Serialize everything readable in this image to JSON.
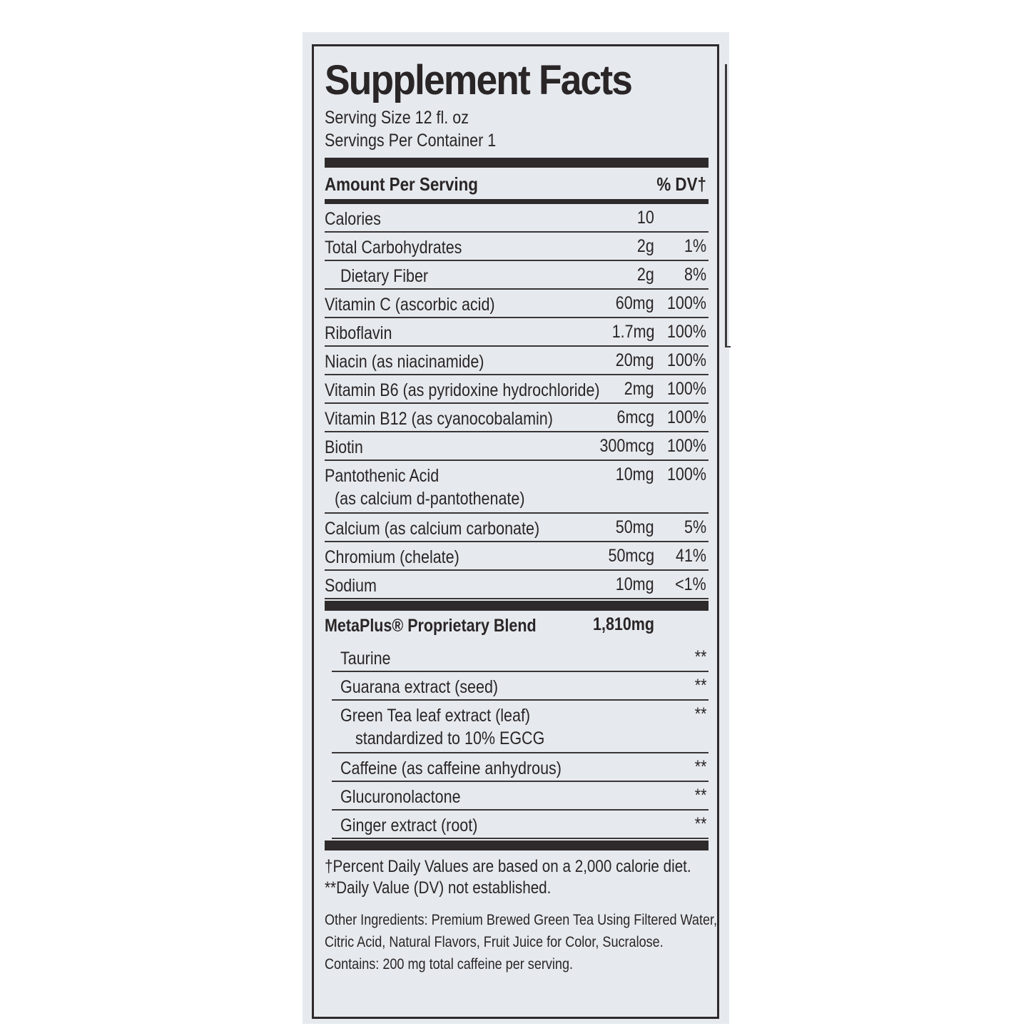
{
  "title": "Supplement Facts",
  "serving_size": "Serving Size 12 fl. oz",
  "servings_per_container": "Servings Per Container 1",
  "header": {
    "amount": "Amount Per Serving",
    "dv": "% DV†"
  },
  "nutrients": [
    {
      "name": "Calories",
      "amount": "10",
      "dv": ""
    },
    {
      "name": "Total Carbohydrates",
      "amount": "2g",
      "dv": "1%"
    },
    {
      "name": "Dietary Fiber",
      "amount": "2g",
      "dv": "8%"
    },
    {
      "name": "Vitamin C (ascorbic acid)",
      "amount": "60mg",
      "dv": "100%"
    },
    {
      "name": "Riboflavin",
      "amount": "1.7mg",
      "dv": "100%"
    },
    {
      "name": "Niacin (as niacinamide)",
      "amount": "20mg",
      "dv": "100%"
    },
    {
      "name": "Vitamin B6 (as pyridoxine hydrochloride)",
      "amount": "2mg",
      "dv": "100%"
    },
    {
      "name": "Vitamin B12 (as cyanocobalamin)",
      "amount": "6mcg",
      "dv": "100%"
    },
    {
      "name": "Biotin",
      "amount": "300mcg",
      "dv": "100%"
    },
    {
      "name": "Pantothenic Acid",
      "name2": "(as calcium d-pantothenate)",
      "amount": "10mg",
      "dv": "100%"
    },
    {
      "name": "Calcium (as calcium carbonate)",
      "amount": "50mg",
      "dv": "5%"
    },
    {
      "name": "Chromium (chelate)",
      "amount": "50mcg",
      "dv": "41%"
    },
    {
      "name": "Sodium",
      "amount": "10mg",
      "dv": "<1%"
    }
  ],
  "blend": {
    "name": "MetaPlus® Proprietary Blend",
    "amount": "1,810mg",
    "items": [
      {
        "name": "Taurine",
        "dv": "**"
      },
      {
        "name": "Guarana extract (seed)",
        "dv": "**"
      },
      {
        "name": "Green Tea leaf extract (leaf)",
        "name2": "standardized to 10% EGCG",
        "dv": "**"
      },
      {
        "name": "Caffeine (as caffeine anhydrous)",
        "dv": "**"
      },
      {
        "name": "Glucuronolactone",
        "dv": "**"
      },
      {
        "name": "Ginger extract (root)",
        "dv": "**"
      }
    ]
  },
  "footnotes": [
    "†Percent Daily Values are based on a 2,000 calorie diet.",
    "**Daily Value (DV) not established."
  ],
  "other_ingredients": [
    "Other Ingredients: Premium Brewed Green Tea Using Filtered Water,",
    "Citric Acid, Natural Flavors, Fruit Juice for Color, Sucralose.",
    "Contains: 200 mg total caffeine per serving."
  ]
}
